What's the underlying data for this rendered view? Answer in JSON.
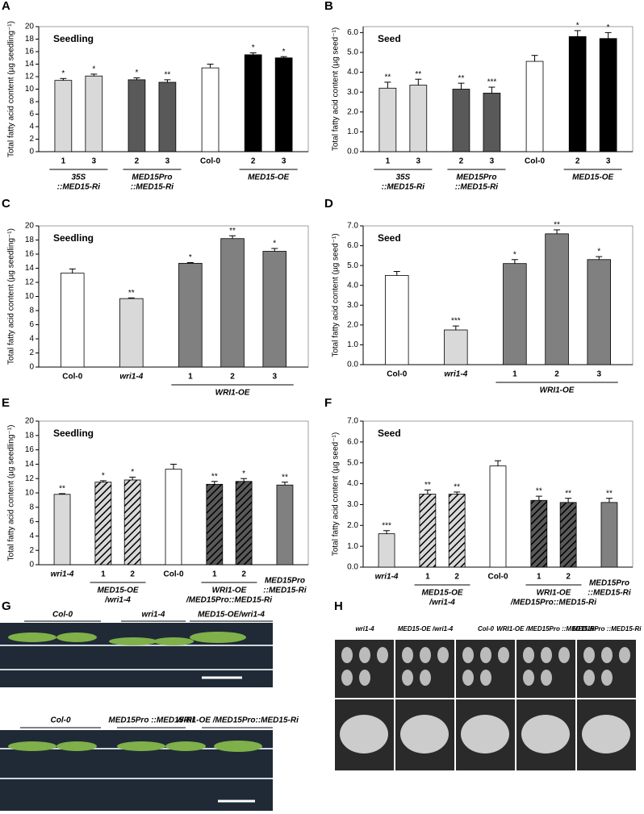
{
  "chart_data": [
    {
      "type": "bar",
      "panel": "A",
      "annotation": "Seedling",
      "y_label": "Total fatty acid content (µg seedling⁻¹)",
      "ylim": [
        0,
        20
      ],
      "yticks": [
        0,
        2,
        4,
        6,
        8,
        10,
        12,
        14,
        16,
        18,
        20
      ],
      "groups": [
        {
          "label": [
            "35S",
            "::MED15-Ri"
          ],
          "categories": [
            "1",
            "3"
          ],
          "values": [
            11.4,
            12.1
          ],
          "errors": [
            0.3,
            0.3
          ],
          "significance": [
            "*",
            "*"
          ],
          "color": "#d9d9d9"
        },
        {
          "label": [
            "MED15Pro",
            "::MED15-Ri"
          ],
          "categories": [
            "2",
            "3"
          ],
          "values": [
            11.5,
            11.1
          ],
          "errors": [
            0.3,
            0.4
          ],
          "significance": [
            "*",
            "**"
          ],
          "color": "#595959"
        },
        {
          "label": null,
          "categories": [
            "Col-0"
          ],
          "values": [
            13.4
          ],
          "errors": [
            0.6
          ],
          "significance": [
            null
          ],
          "color": "#ffffff"
        },
        {
          "label": [
            "MED15-OE"
          ],
          "categories": [
            "2",
            "3"
          ],
          "values": [
            15.5,
            15.0
          ],
          "errors": [
            0.3,
            0.2
          ],
          "significance": [
            "*",
            "*"
          ],
          "color": "#000000"
        }
      ]
    },
    {
      "type": "bar",
      "panel": "B",
      "annotation": "Seed",
      "y_label": "Total fatty acid content (µg seed⁻¹)",
      "ylim": [
        0,
        6.3
      ],
      "yticks": [
        {
          "value": 0,
          "label": "0.0"
        },
        {
          "value": 1,
          "label": "1.0"
        },
        {
          "value": 2,
          "label": "2.0"
        },
        {
          "value": 3,
          "label": "3.0"
        },
        {
          "value": 4,
          "label": "4.0"
        },
        {
          "value": 5,
          "label": "5.0"
        },
        {
          "value": 6,
          "label": "6.0"
        }
      ],
      "groups": [
        {
          "label": [
            "35S",
            "::MED15-Ri"
          ],
          "categories": [
            "1",
            "3"
          ],
          "values": [
            3.2,
            3.35
          ],
          "errors": [
            0.3,
            0.3
          ],
          "significance": [
            "**",
            "**"
          ],
          "color": "#d9d9d9"
        },
        {
          "label": [
            "MED15Pro",
            "::MED15-Ri"
          ],
          "categories": [
            "2",
            "3"
          ],
          "values": [
            3.15,
            2.95
          ],
          "errors": [
            0.3,
            0.3
          ],
          "significance": [
            "**",
            "***"
          ],
          "color": "#595959"
        },
        {
          "label": null,
          "categories": [
            "Col-0"
          ],
          "values": [
            4.55
          ],
          "errors": [
            0.3
          ],
          "significance": [
            null
          ],
          "color": "#ffffff"
        },
        {
          "label": [
            "MED15-OE"
          ],
          "categories": [
            "2",
            "3"
          ],
          "values": [
            5.8,
            5.7
          ],
          "errors": [
            0.3,
            0.3
          ],
          "significance": [
            "*",
            "*"
          ],
          "color": "#000000"
        }
      ]
    },
    {
      "type": "bar",
      "panel": "C",
      "annotation": "Seedling",
      "y_label": "Total fatty acid content (µg seedling⁻¹)",
      "ylim": [
        0,
        20
      ],
      "yticks": [
        0,
        2,
        4,
        6,
        8,
        10,
        12,
        14,
        16,
        18,
        20
      ],
      "groups": [
        {
          "label": null,
          "categories": [
            "Col-0"
          ],
          "values": [
            13.3
          ],
          "errors": [
            0.6
          ],
          "significance": [
            null
          ],
          "color": "#ffffff"
        },
        {
          "label": null,
          "categories": [
            "wri1-4"
          ],
          "values": [
            9.7
          ],
          "errors": [
            0.1
          ],
          "significance": [
            "**"
          ],
          "color": "#d9d9d9"
        },
        {
          "label": [
            "WRI1-OE"
          ],
          "categories": [
            "1",
            "2",
            "3"
          ],
          "values": [
            14.7,
            18.2,
            16.4
          ],
          "errors": [
            0.1,
            0.4,
            0.4
          ],
          "significance": [
            "*",
            "**",
            "*"
          ],
          "color": "#808080"
        }
      ]
    },
    {
      "type": "bar",
      "panel": "D",
      "annotation": "Seed",
      "y_label": "Total fatty acid content (µg seed⁻¹)",
      "ylim": [
        0,
        7
      ],
      "yticks": [
        {
          "value": 0,
          "label": "0.0"
        },
        {
          "value": 1,
          "label": "1.0"
        },
        {
          "value": 2,
          "label": "2.0"
        },
        {
          "value": 3,
          "label": "3.0"
        },
        {
          "value": 4,
          "label": "4.0"
        },
        {
          "value": 5,
          "label": "5.0"
        },
        {
          "value": 6,
          "label": "6.0"
        },
        {
          "value": 7,
          "label": "7.0"
        }
      ],
      "groups": [
        {
          "label": null,
          "categories": [
            "Col-0"
          ],
          "values": [
            4.5
          ],
          "errors": [
            0.2
          ],
          "significance": [
            null
          ],
          "color": "#ffffff"
        },
        {
          "label": null,
          "categories": [
            "wri1-4"
          ],
          "values": [
            1.75
          ],
          "errors": [
            0.2
          ],
          "significance": [
            "***"
          ],
          "color": "#d9d9d9"
        },
        {
          "label": [
            "WRI1-OE"
          ],
          "categories": [
            "1",
            "2",
            "3"
          ],
          "values": [
            5.1,
            6.6,
            5.3
          ],
          "errors": [
            0.2,
            0.2,
            0.15
          ],
          "significance": [
            "*",
            "**",
            "*"
          ],
          "color": "#808080"
        }
      ]
    },
    {
      "type": "bar",
      "panel": "E",
      "annotation": "Seedling",
      "y_label": "Total fatty acid content (µg seedling⁻¹)",
      "ylim": [
        0,
        20
      ],
      "yticks": [
        0,
        2,
        4,
        6,
        8,
        10,
        12,
        14,
        16,
        18,
        20
      ],
      "groups": [
        {
          "label": null,
          "categories": [
            "wri1-4"
          ],
          "values": [
            9.8
          ],
          "errors": [
            0.1
          ],
          "significance": [
            "**"
          ],
          "color": "#d9d9d9"
        },
        {
          "label": [
            "MED15-OE",
            "/wri1-4"
          ],
          "categories": [
            "1",
            "2"
          ],
          "values": [
            11.5,
            11.8
          ],
          "errors": [
            0.2,
            0.4
          ],
          "significance": [
            "*",
            "*"
          ],
          "color": "#d9d9d9",
          "pattern": "diagonal"
        },
        {
          "label": null,
          "categories": [
            "Col-0"
          ],
          "values": [
            13.3
          ],
          "errors": [
            0.7
          ],
          "significance": [
            null
          ],
          "color": "#ffffff"
        },
        {
          "label": [
            "WRI1-OE",
            "/MED15Pro::MED15-Ri"
          ],
          "categories": [
            "1",
            "2"
          ],
          "values": [
            11.2,
            11.6
          ],
          "errors": [
            0.4,
            0.4
          ],
          "significance": [
            "**",
            "*"
          ],
          "color": "#595959",
          "pattern": "diagonal"
        },
        {
          "label": [
            "MED15Pro",
            "::MED15-Ri"
          ],
          "categories": [
            null
          ],
          "values": [
            11.1
          ],
          "errors": [
            0.4
          ],
          "significance": [
            "**"
          ],
          "color": "#808080"
        }
      ]
    },
    {
      "type": "bar",
      "panel": "F",
      "annotation": "Seed",
      "y_label": "Total fatty acid content (µg seed⁻¹)",
      "ylim": [
        0,
        7
      ],
      "yticks": [
        {
          "value": 0,
          "label": "0.0"
        },
        {
          "value": 1,
          "label": "1.0"
        },
        {
          "value": 2,
          "label": "2.0"
        },
        {
          "value": 3,
          "label": "3.0"
        },
        {
          "value": 4,
          "label": "4.0"
        },
        {
          "value": 5,
          "label": "5.0"
        },
        {
          "value": 6,
          "label": "6.0"
        },
        {
          "value": 7,
          "label": "7.0"
        }
      ],
      "groups": [
        {
          "label": null,
          "categories": [
            "wri1-4"
          ],
          "values": [
            1.6
          ],
          "errors": [
            0.15
          ],
          "significance": [
            "***"
          ],
          "color": "#d9d9d9"
        },
        {
          "label": [
            "MED15-OE",
            "/wri1-4"
          ],
          "categories": [
            "1",
            "2"
          ],
          "values": [
            3.5,
            3.5
          ],
          "errors": [
            0.2,
            0.1
          ],
          "significance": [
            "**",
            "**"
          ],
          "color": "#d9d9d9",
          "pattern": "diagonal"
        },
        {
          "label": null,
          "categories": [
            "Col-0"
          ],
          "values": [
            4.85
          ],
          "errors": [
            0.25
          ],
          "significance": [
            null
          ],
          "color": "#ffffff"
        },
        {
          "label": [
            "WRI1-OE",
            "/MED15Pro::MED15-Ri"
          ],
          "categories": [
            "1",
            "2"
          ],
          "values": [
            3.2,
            3.1
          ],
          "errors": [
            0.2,
            0.2
          ],
          "significance": [
            "**",
            "**"
          ],
          "color": "#595959",
          "pattern": "diagonal"
        },
        {
          "label": [
            "MED15Pro",
            "::MED15-Ri"
          ],
          "categories": [
            null
          ],
          "values": [
            3.1
          ],
          "errors": [
            0.2
          ],
          "significance": [
            "**"
          ],
          "color": "#808080"
        }
      ]
    }
  ],
  "photos": [
    {
      "panel": "G",
      "top_labels": [
        "Col-0",
        "wri1-4",
        "MED15-OE/wri1-4"
      ],
      "bottom_labels": [
        "Col-0",
        "MED15Pro ::MED15-Ri",
        "WRI1-OE /MED15Pro::MED15-Ri"
      ]
    },
    {
      "panel": "H",
      "columns": [
        "wri1-4",
        "MED15-OE /wri1-4",
        "Col-0",
        "WRI1-OE /MED15Pro ::MED15-Ri",
        "MED15Pro ::MED15-Ri"
      ]
    }
  ]
}
